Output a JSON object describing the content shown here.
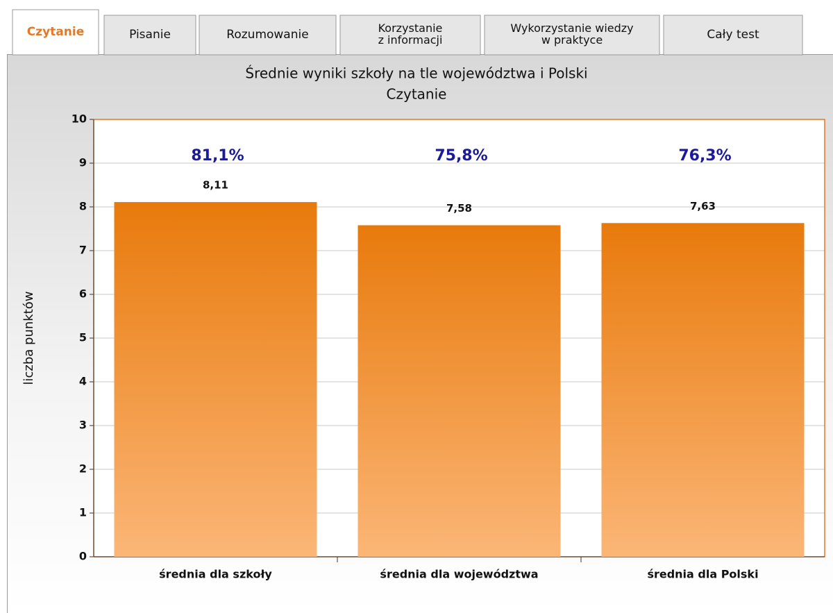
{
  "tabs": [
    [
      "Czytanie"
    ],
    [
      "Pisanie"
    ],
    [
      "Rozumowanie"
    ],
    [
      "Korzystanie",
      "z informacji"
    ],
    [
      "Wykorzystanie wiedzy",
      "w praktyce"
    ],
    [
      "Cały test"
    ]
  ],
  "active_tab": 0,
  "chart_data": {
    "type": "bar",
    "title": "Średnie wyniki szkoły na tle województwa i Polski",
    "subtitle": "Czytanie",
    "y_label": "liczba punktów",
    "categories": [
      "średnia dla szkoły",
      "średnia dla województwa",
      "średnia dla Polski"
    ],
    "values": [
      8.11,
      7.58,
      7.63
    ],
    "value_labels": [
      "8,11",
      "7,58",
      "7,63"
    ],
    "annotations": [
      "81,1%",
      "75,8%",
      "76,3%"
    ],
    "color": "#e87a0c",
    "ylim": [
      0,
      10
    ],
    "yticks": [
      0,
      1,
      2,
      3,
      4,
      5,
      6,
      7,
      8,
      9,
      10
    ],
    "grid": true
  }
}
